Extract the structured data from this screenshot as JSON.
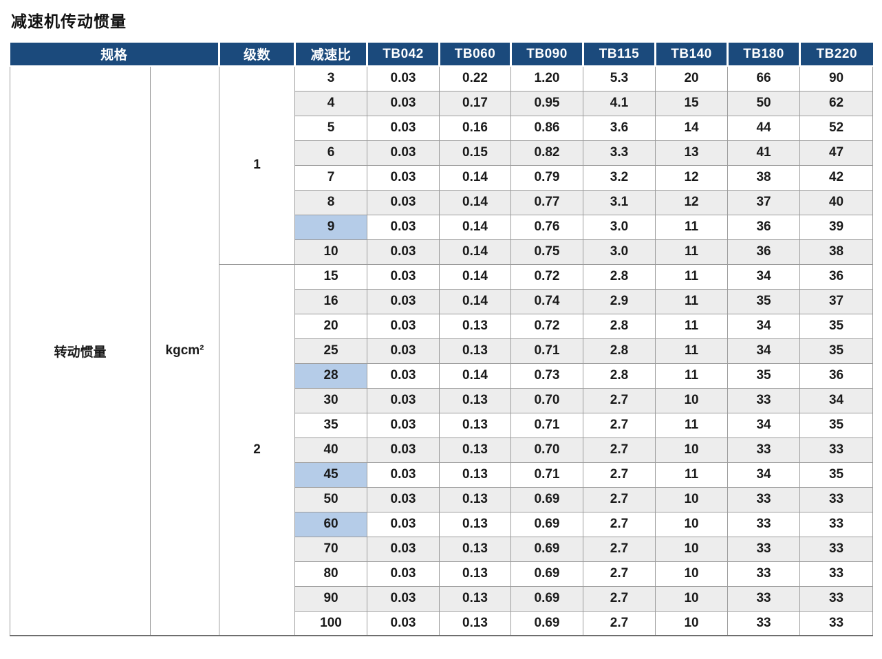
{
  "page_title": "减速机传动惯量",
  "table": {
    "headers": {
      "spec": "规格",
      "stages": "级数",
      "ratio": "减速比",
      "models": [
        "TB042",
        "TB060",
        "TB090",
        "TB115",
        "TB140",
        "TB180",
        "TB220"
      ]
    },
    "spec_label": "转动惯量",
    "unit_label": "kgcm²",
    "colors": {
      "header_bg": "#1b4a7c",
      "header_text": "#ffffff",
      "row_alt_bg": "#ededed",
      "highlight_bg": "#b5cce8",
      "border": "#9b9b9b"
    },
    "sections": [
      {
        "stage": "1",
        "rows": [
          {
            "ratio": "3",
            "highlight": false,
            "values": [
              "0.03",
              "0.22",
              "1.20",
              "5.3",
              "20",
              "66",
              "90"
            ]
          },
          {
            "ratio": "4",
            "highlight": false,
            "values": [
              "0.03",
              "0.17",
              "0.95",
              "4.1",
              "15",
              "50",
              "62"
            ]
          },
          {
            "ratio": "5",
            "highlight": false,
            "values": [
              "0.03",
              "0.16",
              "0.86",
              "3.6",
              "14",
              "44",
              "52"
            ]
          },
          {
            "ratio": "6",
            "highlight": true,
            "values": [
              "0.03",
              "0.15",
              "0.82",
              "3.3",
              "13",
              "41",
              "47"
            ]
          },
          {
            "ratio": "7",
            "highlight": false,
            "values": [
              "0.03",
              "0.14",
              "0.79",
              "3.2",
              "12",
              "38",
              "42"
            ]
          },
          {
            "ratio": "8",
            "highlight": false,
            "values": [
              "0.03",
              "0.14",
              "0.77",
              "3.1",
              "12",
              "37",
              "40"
            ]
          },
          {
            "ratio": "9",
            "highlight": true,
            "values": [
              "0.03",
              "0.14",
              "0.76",
              "3.0",
              "11",
              "36",
              "39"
            ]
          },
          {
            "ratio": "10",
            "highlight": false,
            "values": [
              "0.03",
              "0.14",
              "0.75",
              "3.0",
              "11",
              "36",
              "38"
            ]
          }
        ]
      },
      {
        "stage": "2",
        "rows": [
          {
            "ratio": "15",
            "highlight": false,
            "values": [
              "0.03",
              "0.14",
              "0.72",
              "2.8",
              "11",
              "34",
              "36"
            ]
          },
          {
            "ratio": "16",
            "highlight": true,
            "values": [
              "0.03",
              "0.14",
              "0.74",
              "2.9",
              "11",
              "35",
              "37"
            ]
          },
          {
            "ratio": "20",
            "highlight": false,
            "values": [
              "0.03",
              "0.13",
              "0.72",
              "2.8",
              "11",
              "34",
              "35"
            ]
          },
          {
            "ratio": "25",
            "highlight": false,
            "values": [
              "0.03",
              "0.13",
              "0.71",
              "2.8",
              "11",
              "34",
              "35"
            ]
          },
          {
            "ratio": "28",
            "highlight": true,
            "values": [
              "0.03",
              "0.14",
              "0.73",
              "2.8",
              "11",
              "35",
              "36"
            ]
          },
          {
            "ratio": "30",
            "highlight": false,
            "values": [
              "0.03",
              "0.13",
              "0.70",
              "2.7",
              "10",
              "33",
              "34"
            ]
          },
          {
            "ratio": "35",
            "highlight": false,
            "values": [
              "0.03",
              "0.13",
              "0.71",
              "2.7",
              "11",
              "34",
              "35"
            ]
          },
          {
            "ratio": "40",
            "highlight": false,
            "values": [
              "0.03",
              "0.13",
              "0.70",
              "2.7",
              "10",
              "33",
              "33"
            ]
          },
          {
            "ratio": "45",
            "highlight": true,
            "values": [
              "0.03",
              "0.13",
              "0.71",
              "2.7",
              "11",
              "34",
              "35"
            ]
          },
          {
            "ratio": "50",
            "highlight": false,
            "values": [
              "0.03",
              "0.13",
              "0.69",
              "2.7",
              "10",
              "33",
              "33"
            ]
          },
          {
            "ratio": "60",
            "highlight": true,
            "values": [
              "0.03",
              "0.13",
              "0.69",
              "2.7",
              "10",
              "33",
              "33"
            ]
          },
          {
            "ratio": "70",
            "highlight": false,
            "values": [
              "0.03",
              "0.13",
              "0.69",
              "2.7",
              "10",
              "33",
              "33"
            ]
          },
          {
            "ratio": "80",
            "highlight": false,
            "values": [
              "0.03",
              "0.13",
              "0.69",
              "2.7",
              "10",
              "33",
              "33"
            ]
          },
          {
            "ratio": "90",
            "highlight": true,
            "values": [
              "0.03",
              "0.13",
              "0.69",
              "2.7",
              "10",
              "33",
              "33"
            ]
          },
          {
            "ratio": "100",
            "highlight": false,
            "values": [
              "0.03",
              "0.13",
              "0.69",
              "2.7",
              "10",
              "33",
              "33"
            ]
          }
        ]
      }
    ]
  }
}
